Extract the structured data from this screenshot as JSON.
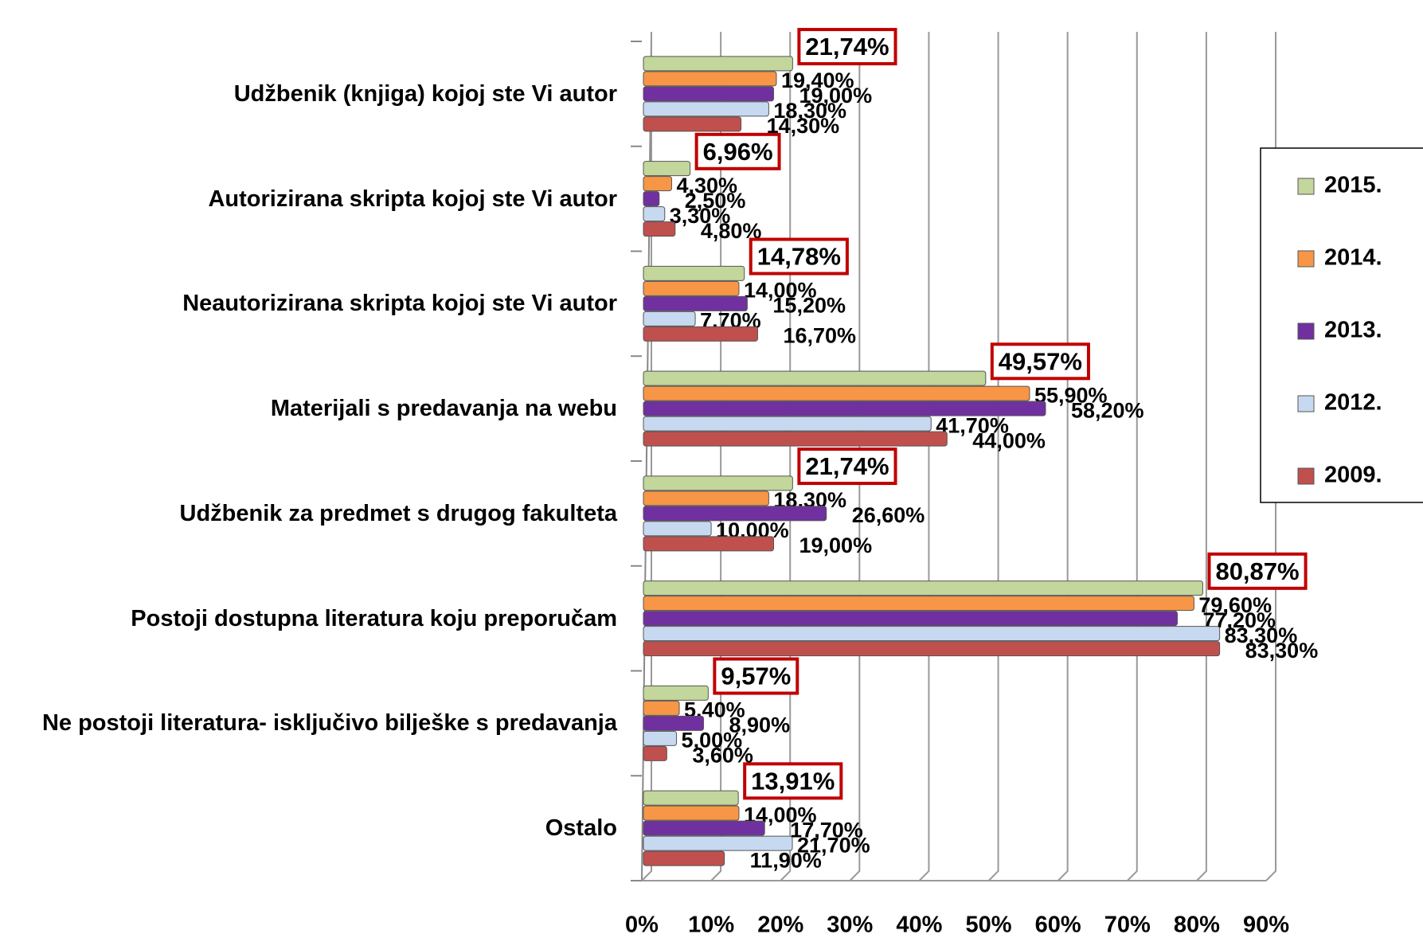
{
  "chart_data": {
    "type": "bar",
    "orientation": "horizontal",
    "categories": [
      "Udžbenik (knjiga) kojoj ste Vi autor",
      "Autorizirana skripta kojoj ste Vi autor",
      "Neautorizirana skripta kojoj ste Vi autor",
      "Materijali s predavanja na webu",
      "Udžbenik za predmet s drugog fakulteta",
      "Postoji dostupna literatura koju preporučam",
      "Ne postoji literatura- isključivo bilješke s predavanja",
      "Ostalo"
    ],
    "series": [
      {
        "name": "2015.",
        "color": "#c3d69b",
        "values": [
          21.74,
          6.96,
          14.78,
          49.57,
          21.74,
          80.87,
          9.57,
          13.91
        ],
        "value_labels": [
          "21,74%",
          "6,96%",
          "14,78%",
          "49,57%",
          "21,74%",
          "80,87%",
          "9,57%",
          "13,91%"
        ]
      },
      {
        "name": "2014.",
        "color": "#f79646",
        "values": [
          19.4,
          4.3,
          14.0,
          55.9,
          18.3,
          79.6,
          5.4,
          14.0
        ],
        "value_labels": [
          "19,40%",
          "4,30%",
          "14,00%",
          "55,90%",
          "18,30%",
          "79,60%",
          "5,40%",
          "14,00%"
        ]
      },
      {
        "name": "2013.",
        "color": "#7030a0",
        "values": [
          19.0,
          2.5,
          15.2,
          58.2,
          26.6,
          77.2,
          8.9,
          17.7
        ],
        "value_labels": [
          "19,00%",
          "2,50%",
          "15,20%",
          "58,20%",
          "26,60%",
          "77,20%",
          "8,90%",
          "17,70%"
        ]
      },
      {
        "name": "2012.",
        "color": "#c6d9f1",
        "values": [
          18.3,
          3.3,
          7.7,
          41.7,
          10.0,
          83.3,
          5.0,
          21.7
        ],
        "value_labels": [
          "18,30%",
          "3,30%",
          "7,70%",
          "41,70%",
          "10,00%",
          "83,30%",
          "5,00%",
          "21,70%"
        ]
      },
      {
        "name": "2009.",
        "color": "#c0504d",
        "values": [
          14.3,
          4.8,
          16.7,
          44.0,
          19.0,
          83.3,
          3.6,
          11.9
        ],
        "value_labels": [
          "14,30%",
          "4,80%",
          "16,70%",
          "44,00%",
          "19,00%",
          "83,30%",
          "3,60%",
          "11,90%"
        ]
      }
    ],
    "xlim": [
      0,
      90
    ],
    "xticks": [
      {
        "value": 0,
        "label": "0%"
      },
      {
        "value": 10,
        "label": "10%"
      },
      {
        "value": 20,
        "label": "20%"
      },
      {
        "value": 30,
        "label": "30%"
      },
      {
        "value": 40,
        "label": "40%"
      },
      {
        "value": 50,
        "label": "50%"
      },
      {
        "value": 60,
        "label": "60%"
      },
      {
        "value": 70,
        "label": "70%"
      },
      {
        "value": 80,
        "label": "80%"
      },
      {
        "value": 90,
        "label": "90%"
      }
    ],
    "grid": true,
    "legend": "right"
  }
}
